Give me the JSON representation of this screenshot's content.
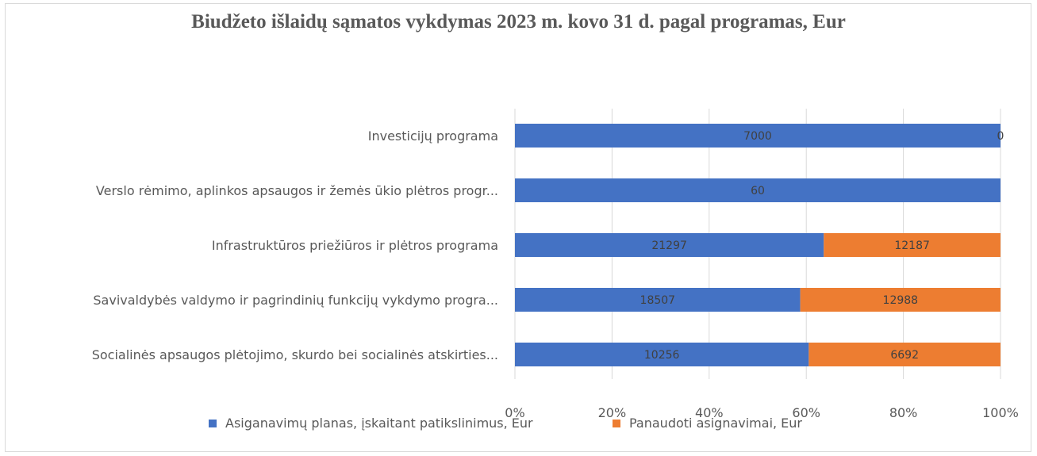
{
  "chart_data": {
    "type": "bar",
    "orientation": "horizontal",
    "stacking": "percent",
    "title": "Biudžeto išlaidų sąmatos vykdymas 2023 m. kovo 31 d. pagal programas, Eur",
    "categories": [
      "Investicijų programa",
      "Verslo rėmimo, aplinkos apsaugos ir žemės ūkio plėtros progr...",
      "Infrastruktūros priežiūros ir plėtros programa",
      "Savivaldybės valdymo ir pagrindinių funkcijų vykdymo progra...",
      "Socialinės apsaugos plėtojimo, skurdo bei socialinės atskirties..."
    ],
    "series": [
      {
        "name": "Asiganavimų planas, įskaitant patikslinimus, Eur",
        "color": "#4472c4",
        "values": [
          7000,
          60,
          21297,
          18507,
          10256
        ]
      },
      {
        "name": "Panaudoti asignavimai, Eur",
        "color": "#ed7d31",
        "values": [
          0,
          null,
          12187,
          12988,
          6692
        ]
      }
    ],
    "x_ticks": [
      "0%",
      "20%",
      "40%",
      "60%",
      "80%",
      "100%"
    ],
    "xlim": [
      0,
      1
    ],
    "grid": true,
    "legend_position": "bottom"
  }
}
